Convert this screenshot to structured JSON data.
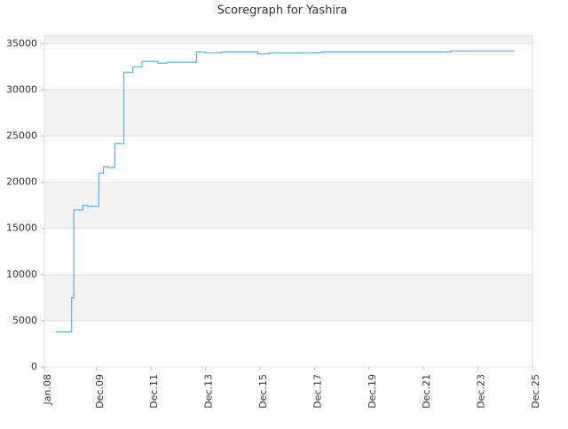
{
  "chart_data": {
    "type": "step-line",
    "title": "Scoregraph for Yashira",
    "series": [
      {
        "name": "Yashira",
        "color": "#5aabee",
        "x": [
          "2008-06",
          "2009-01",
          "2009-02",
          "2009-06",
          "2009-08",
          "2010-01",
          "2010-03",
          "2010-05",
          "2010-08",
          "2010-12",
          "2011-04",
          "2011-08",
          "2012-03",
          "2012-07",
          "2013-08",
          "2013-12",
          "2014-07",
          "2015-11",
          "2016-04",
          "2018-03",
          "2022-12",
          "2025-04"
        ],
        "values": [
          3800,
          7500,
          17000,
          17500,
          17400,
          21000,
          21700,
          21600,
          24200,
          31900,
          32500,
          33100,
          32900,
          33000,
          34100,
          34000,
          34100,
          33900,
          34000,
          34100,
          34200,
          34200
        ]
      }
    ],
    "xlim": [
      "2008-01",
      "2025-12"
    ],
    "xticks": [
      {
        "value": "2008-01",
        "label": "Jan.08"
      },
      {
        "value": "2009-12",
        "label": "Dec.09"
      },
      {
        "value": "2011-12",
        "label": "Dec.11"
      },
      {
        "value": "2013-12",
        "label": "Dec.13"
      },
      {
        "value": "2015-12",
        "label": "Dec.15"
      },
      {
        "value": "2017-12",
        "label": "Dec.17"
      },
      {
        "value": "2019-12",
        "label": "Dec.19"
      },
      {
        "value": "2021-12",
        "label": "Dec.21"
      },
      {
        "value": "2023-12",
        "label": "Dec.23"
      },
      {
        "value": "2025-12",
        "label": "Dec.25"
      }
    ],
    "ylim": [
      0,
      35900
    ],
    "yticks": [
      0,
      5000,
      10000,
      15000,
      20000,
      25000,
      30000,
      35000
    ],
    "grid": true
  }
}
